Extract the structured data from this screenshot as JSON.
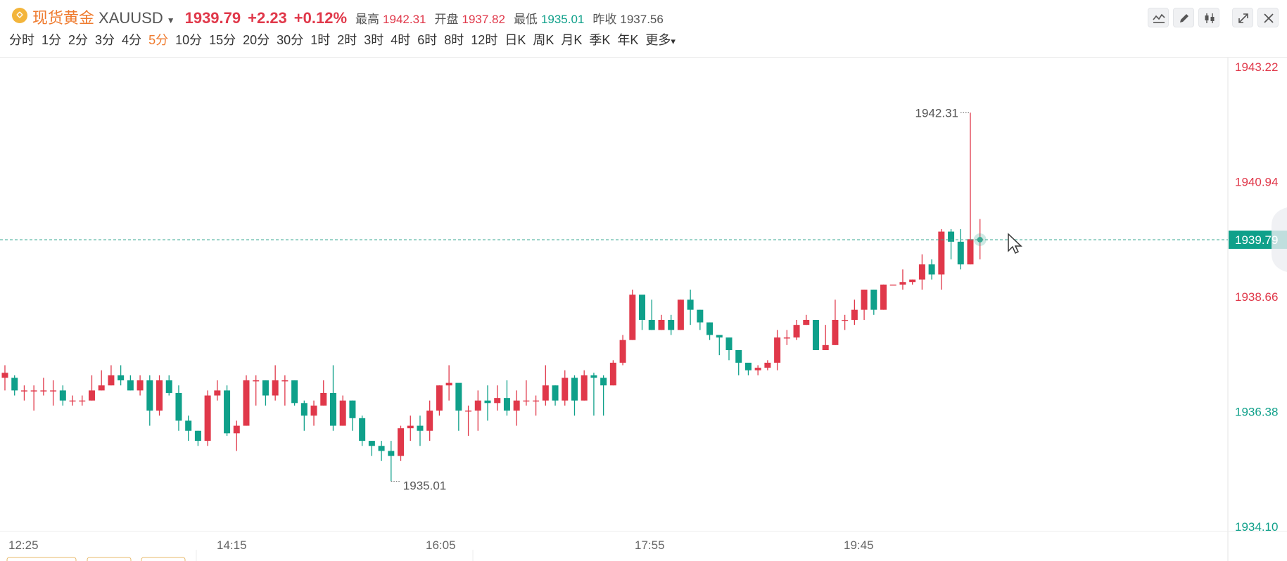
{
  "header": {
    "name": "现货黄金",
    "symbol": "XAUUSD",
    "price": "1939.79",
    "change": "+2.23",
    "change_pct": "+0.12%",
    "high_label": "最高",
    "high": "1942.31",
    "open_label": "开盘",
    "open": "1937.82",
    "low_label": "最低",
    "low": "1935.01",
    "prev_close_label": "昨收",
    "prev_close": "1937.56"
  },
  "periods": [
    "分时",
    "1分",
    "2分",
    "3分",
    "4分",
    "5分",
    "10分",
    "15分",
    "20分",
    "30分",
    "1时",
    "2时",
    "3时",
    "4时",
    "6时",
    "8时",
    "12时",
    "日K",
    "周K",
    "月K",
    "季K",
    "年K",
    "更多"
  ],
  "active_period": "5分",
  "colors": {
    "up": "#e0384a",
    "down": "#0fa08a",
    "accent": "#ef7b2f",
    "last_price_bg": "#0fa08a"
  },
  "chart_data": {
    "type": "candlestick",
    "interval": "5分",
    "y_axis_ticks": [
      "1943.22",
      "1940.94",
      "1939.79",
      "1938.66",
      "1936.38",
      "1934.10"
    ],
    "x_axis_ticks": [
      "12:25",
      "14:15",
      "16:05",
      "17:55",
      "19:45"
    ],
    "ylim": [
      1934.1,
      1943.22
    ],
    "last_price": 1939.79,
    "high_marker": "1942.31",
    "low_marker": "1935.01",
    "candles": [
      [
        1937.05,
        1937.15,
        1937.3,
        1936.8
      ],
      [
        1937.05,
        1936.8,
        1937.1,
        1936.7
      ],
      [
        1936.8,
        1936.8,
        1936.9,
        1936.6
      ],
      [
        1936.8,
        1936.8,
        1936.9,
        1936.4
      ],
      [
        1936.8,
        1936.8,
        1937.05,
        1936.7
      ],
      [
        1936.8,
        1936.8,
        1937.0,
        1936.5
      ],
      [
        1936.8,
        1936.6,
        1936.9,
        1936.5
      ],
      [
        1936.6,
        1936.6,
        1936.7,
        1936.5
      ],
      [
        1936.6,
        1936.6,
        1936.7,
        1936.5
      ],
      [
        1936.6,
        1936.8,
        1937.1,
        1936.6
      ],
      [
        1936.8,
        1936.9,
        1937.2,
        1936.8
      ],
      [
        1936.9,
        1937.1,
        1937.3,
        1936.9
      ],
      [
        1937.1,
        1937.0,
        1937.3,
        1936.9
      ],
      [
        1937.0,
        1936.8,
        1937.1,
        1936.8
      ],
      [
        1936.8,
        1937.0,
        1937.1,
        1936.7
      ],
      [
        1937.0,
        1936.4,
        1937.1,
        1936.1
      ],
      [
        1936.4,
        1937.0,
        1937.1,
        1936.3
      ],
      [
        1937.0,
        1936.75,
        1937.1,
        1936.7
      ],
      [
        1936.75,
        1936.2,
        1936.9,
        1936.0
      ],
      [
        1936.2,
        1936.0,
        1936.3,
        1935.8
      ],
      [
        1936.0,
        1935.8,
        1936.0,
        1935.7
      ],
      [
        1935.8,
        1936.7,
        1936.8,
        1935.7
      ],
      [
        1936.7,
        1936.8,
        1937.0,
        1936.6
      ],
      [
        1936.8,
        1935.95,
        1936.9,
        1935.9
      ],
      [
        1935.95,
        1936.1,
        1936.2,
        1935.6
      ],
      [
        1936.1,
        1937.0,
        1937.1,
        1936.1
      ],
      [
        1937.0,
        1937.0,
        1937.1,
        1936.5
      ],
      [
        1937.0,
        1936.7,
        1937.0,
        1936.5
      ],
      [
        1936.7,
        1937.0,
        1937.3,
        1936.6
      ],
      [
        1937.0,
        1937.0,
        1937.1,
        1936.5
      ],
      [
        1937.0,
        1936.55,
        1937.0,
        1936.5
      ],
      [
        1936.55,
        1936.3,
        1936.6,
        1936.0
      ],
      [
        1936.3,
        1936.5,
        1936.6,
        1936.1
      ],
      [
        1936.5,
        1936.75,
        1937.0,
        1936.5
      ],
      [
        1936.75,
        1936.1,
        1937.3,
        1936.0
      ],
      [
        1936.1,
        1936.6,
        1936.7,
        1936.1
      ],
      [
        1936.6,
        1936.25,
        1936.6,
        1936.0
      ],
      [
        1936.25,
        1935.8,
        1936.3,
        1935.7
      ],
      [
        1935.8,
        1935.7,
        1935.8,
        1935.5
      ],
      [
        1935.7,
        1935.6,
        1935.8,
        1935.4
      ],
      [
        1935.6,
        1935.5,
        1935.8,
        1935.0
      ],
      [
        1935.5,
        1936.05,
        1936.1,
        1935.4
      ],
      [
        1936.05,
        1936.1,
        1936.3,
        1935.8
      ],
      [
        1936.1,
        1936.0,
        1936.3,
        1935.7
      ],
      [
        1936.0,
        1936.4,
        1936.6,
        1935.8
      ],
      [
        1936.4,
        1936.9,
        1936.9,
        1936.3
      ],
      [
        1936.9,
        1936.95,
        1937.3,
        1936.6
      ],
      [
        1936.95,
        1936.4,
        1936.9,
        1936.0
      ],
      [
        1936.4,
        1936.4,
        1936.5,
        1935.9
      ],
      [
        1936.4,
        1936.6,
        1936.8,
        1936.0
      ],
      [
        1936.6,
        1936.55,
        1936.9,
        1936.2
      ],
      [
        1936.55,
        1936.65,
        1936.9,
        1936.4
      ],
      [
        1936.65,
        1936.4,
        1937.0,
        1936.3
      ],
      [
        1936.4,
        1936.6,
        1936.8,
        1936.1
      ],
      [
        1936.6,
        1936.6,
        1937.0,
        1936.5
      ],
      [
        1936.6,
        1936.6,
        1936.7,
        1936.3
      ],
      [
        1936.6,
        1936.9,
        1937.3,
        1936.5
      ],
      [
        1936.9,
        1936.6,
        1936.9,
        1936.5
      ],
      [
        1936.6,
        1937.05,
        1937.2,
        1936.5
      ],
      [
        1937.05,
        1936.6,
        1937.1,
        1936.3
      ],
      [
        1936.6,
        1937.1,
        1937.2,
        1936.6
      ],
      [
        1937.1,
        1937.05,
        1937.15,
        1936.3
      ],
      [
        1937.05,
        1936.9,
        1937.1,
        1936.3
      ],
      [
        1936.9,
        1937.35,
        1937.4,
        1936.9
      ],
      [
        1937.35,
        1937.8,
        1937.9,
        1937.3
      ],
      [
        1937.8,
        1938.7,
        1938.8,
        1937.8
      ],
      [
        1938.7,
        1938.2,
        1938.6,
        1938.0
      ],
      [
        1938.2,
        1938.0,
        1938.6,
        1938.0
      ],
      [
        1938.0,
        1938.2,
        1938.3,
        1938.0
      ],
      [
        1938.2,
        1938.0,
        1938.3,
        1937.9
      ],
      [
        1938.0,
        1938.6,
        1938.6,
        1938.0
      ],
      [
        1938.6,
        1938.4,
        1938.8,
        1938.1
      ],
      [
        1938.4,
        1938.15,
        1938.4,
        1938.0
      ],
      [
        1938.15,
        1937.9,
        1938.15,
        1937.8
      ],
      [
        1937.9,
        1937.85,
        1937.9,
        1937.5
      ],
      [
        1937.85,
        1937.6,
        1937.8,
        1937.4
      ],
      [
        1937.6,
        1937.35,
        1937.5,
        1937.1
      ],
      [
        1937.35,
        1937.2,
        1937.3,
        1937.1
      ],
      [
        1937.2,
        1937.25,
        1937.3,
        1937.1
      ],
      [
        1937.25,
        1937.35,
        1937.4,
        1937.2
      ],
      [
        1937.35,
        1937.85,
        1938.0,
        1937.2
      ],
      [
        1937.85,
        1937.85,
        1938.0,
        1937.7
      ],
      [
        1937.85,
        1938.1,
        1938.2,
        1937.8
      ],
      [
        1938.1,
        1938.2,
        1938.3,
        1938.1
      ],
      [
        1938.2,
        1937.6,
        1938.2,
        1937.6
      ],
      [
        1937.6,
        1937.7,
        1938.1,
        1937.6
      ],
      [
        1937.7,
        1938.2,
        1938.6,
        1937.7
      ],
      [
        1938.2,
        1938.2,
        1938.3,
        1938.0
      ],
      [
        1938.2,
        1938.4,
        1938.6,
        1938.1
      ],
      [
        1938.4,
        1938.8,
        1938.8,
        1938.2
      ],
      [
        1938.8,
        1938.4,
        1938.8,
        1938.3
      ],
      [
        1938.4,
        1938.9,
        1938.9,
        1938.4
      ],
      [
        1938.9,
        1938.9,
        1938.9,
        1938.9
      ],
      [
        1938.9,
        1938.95,
        1939.2,
        1938.8
      ],
      [
        1938.95,
        1939.0,
        1939.0,
        1938.9
      ],
      [
        1939.0,
        1939.3,
        1939.5,
        1938.8
      ],
      [
        1939.3,
        1939.1,
        1939.4,
        1939.0
      ],
      [
        1939.1,
        1939.95,
        1940.0,
        1938.8
      ],
      [
        1939.95,
        1939.75,
        1940.0,
        1939.4
      ],
      [
        1939.75,
        1939.3,
        1940.0,
        1939.2
      ],
      [
        1939.3,
        1939.8,
        1942.31,
        1939.3
      ],
      [
        1939.8,
        1939.8,
        1940.2,
        1939.4
      ]
    ]
  }
}
